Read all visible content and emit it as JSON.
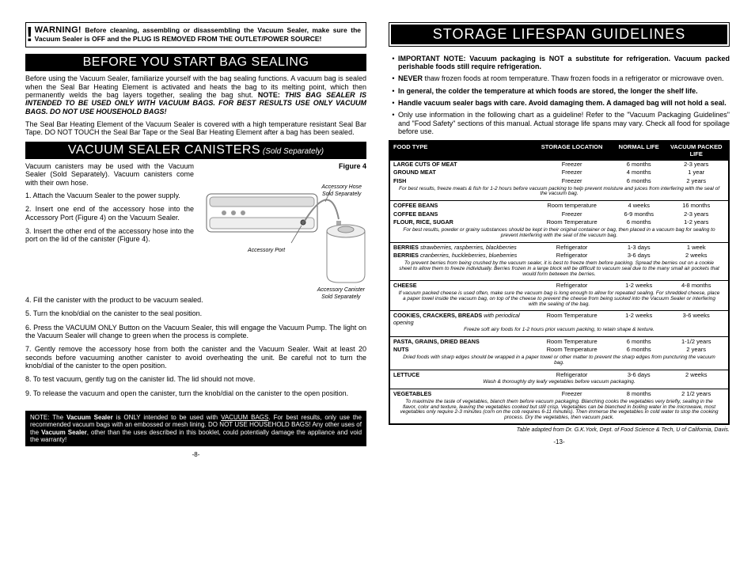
{
  "left": {
    "warning_lead": "WARNING!",
    "warning_body": " Before cleaning, assembling or disassembling the Vacuum Sealer, make sure the Vacuum Sealer is OFF and the PLUG IS REMOVED FROM THE OUTLET/POWER SOURCE!",
    "h1": "BEFORE YOU START BAG SEALING",
    "p1a": "Before using the Vacuum Sealer, familiarize yourself with the bag sealing functions. A vacuum bag is sealed when the Seal Bar Heating Element is activated and heats the bag to its melting point, which then permanently welds the bag layers together, sealing the bag shut.    ",
    "p1_note_lead": "NOTE:",
    "p1_note_body": "  THIS BAG SEALER IS INTENDED TO BE USED ONLY WITH VACUUM BAGS.  FOR BEST RESULTS USE ONLY VACUUM BAGS.  DO NOT USE HOUSEHOLD BAGS!",
    "p2": "The Seal Bar Heating Element of the Vacuum Sealer is covered with a high temperature resistant Seal Bar Tape.  DO NOT TOUCH the Seal Bar Tape or the Seal Bar Heating Element after a bag has been sealed.",
    "h2": "VACUUM SEALER CANISTERS",
    "h2_sub": " (Sold Separately)",
    "can_intro": "Vacuum canisters may be used with the Vacuum Sealer (Sold Separately).  Vacuum canisters come with their own hose.",
    "fig_label": "Figure 4",
    "fig_hose": "Accessory Hose",
    "fig_sold": "Sold Separately",
    "fig_port": "Accessory Port",
    "fig_can": "Accessory Canister",
    "steps": [
      "1.  Attach the Vacuum Sealer to the power supply.",
      "2.  Insert one end of the accessory hose into the Accessory Port (Figure 4) on the Vacuum Sealer.",
      "3.  Insert the other end of the accessory hose into the port on the lid of the canister (Figure 4).",
      "4.   Fill the canister with the product to be vacuum sealed.",
      "5.   Turn the knob/dial on the canister to the seal position.",
      "6.  Press the VACUUM ONLY Button on the Vacuum Sealer, this will engage the Vacuum Pump.  The light on the Vacuum Sealer will change to green when the process is complete.",
      "7.  Gently remove the accessory hose from both the canister and the Vacuum Sealer. Wait at least 20 seconds before vacuuming another canister to avoid overheating the unit. Be careful not to turn the knob/dial of the canister to the open position.",
      "8.   To test vacuum, gently tug on the canister lid. The lid should not move.",
      "9.  To release the vacuum and open the canister, turn the knob/dial on the canister to the open position."
    ],
    "note_box_lead": "NOTE:",
    "note_box_body1": "  The ",
    "note_box_vs": "Vacuum Sealer",
    "note_box_body2": " is ONLY intended to be used with ",
    "note_box_vb": "VACUUM BAGS",
    "note_box_body3": ".  For best results, only use the recommended vacuum bags with an embossed or mesh lining.  ",
    "note_box_dn": "DO NOT USE HOUSEHOLD BAGS!",
    "note_box_body4": "  Any other uses of the  ",
    "note_box_body5": ", other than the uses described in this booklet, could potentially damage the appliance and void the warranty!",
    "page": "-8-"
  },
  "right": {
    "h1": "STORAGE LIFESPAN GUIDELINES",
    "b1_lead": "IMPORTANT NOTE:",
    "b1": " Vacuum packaging is NOT a substitute for refrigeration. Vacuum packed perishable foods still require refrigeration.",
    "b2_lead": "NEVER",
    "b2": " thaw frozen foods at room temperature.  Thaw frozen foods in a refrigerator or microwave oven.",
    "b3": "In general, the colder the temperature at which foods are stored, the longer the shelf life.",
    "b4": "Handle vacuum sealer bags with care.  Avoid damaging them.  A damaged bag will not hold a seal.",
    "b5": "Only use information in the following chart as a guideline!  Refer to the \"Vacuum Packaging Guidelines\" and \"Food Safety\" sections of this manual.  Actual storage life spans may vary.  Check all food for spoilage before use.",
    "table": {
      "head": [
        "FOOD TYPE",
        "STORAGE LOCATION",
        "NORMAL LIFE",
        "VACUUM PACKED LIFE"
      ],
      "groups": [
        {
          "rows": [
            [
              "LARGE CUTS OF MEAT",
              "Freezer",
              "6 months",
              "2-3 years"
            ],
            [
              "GROUND MEAT",
              "Freezer",
              "4 months",
              "1 year"
            ],
            [
              "FISH",
              "Freezer",
              "6 months",
              "2 years"
            ]
          ],
          "tip": "For best results, freeze meats & fish for 1-2 hours before vacuum packing to help prevent moisture and juices from interfering with the seal of the vacuum bag."
        },
        {
          "rows": [
            [
              "COFFEE BEANS",
              "Room temperature",
              "4 weeks",
              "16 months"
            ],
            [
              "COFFEE BEANS",
              "Freezer",
              "6-9 months",
              "2-3 years"
            ],
            [
              "FLOUR, RICE, SUGAR",
              "Room Temperature",
              "6 months",
              "1-2 years"
            ]
          ],
          "tip": "For best results, powder or grainy substances should be kept in their original container or bag, then placed in a vacuum bag for sealing to prevent interfering with the seal of the vacuum bag."
        },
        {
          "rows": [
            [
              "BERRIES strawberries, raspberries, blackberries",
              "Refrigerator",
              "1-3 days",
              "1 week"
            ],
            [
              "BERRIES cranberries, huckleberries, blueberries",
              "Refrigerator",
              "3-6 days",
              "2 weeks"
            ]
          ],
          "tip": "To prevent berries from being crushed by the vacuum sealer, it is best to freeze them before packing.  Spread the berries out on a cookie sheet to allow them to freeze individually.  Berries frozen in a large block will be difficult to vacuum seal due to the many small air pockets that would form between the berries."
        },
        {
          "rows": [
            [
              "CHEESE",
              "Refrigerator",
              "1-2 weeks",
              "4-8 months"
            ]
          ],
          "tip": "If vacuum packed cheese is used often, make sure the vacuum bag is long enough to allow for repeated sealing.  For shredded cheese, place a paper towel inside the vacuum bag, on top of the cheese to prevent the cheese from being sucked into the Vacuum Sealer or interfering with the sealing of the bag."
        },
        {
          "rows": [
            [
              "COOKIES, CRACKERS, BREADS with periodical opening",
              "Room Temperature",
              "1-2 weeks",
              "3-6 weeks"
            ]
          ],
          "tip": "Freeze soft airy foods for 1-2 hours prior vacuum packing, to retain shape & texture."
        },
        {
          "rows": [
            [
              "PASTA, GRAINS, DRIED BEANS",
              "Room Temperature",
              "6 months",
              "1-1/2 years"
            ],
            [
              "NUTS",
              "Room Temperature",
              "6 months",
              "2 years"
            ]
          ],
          "tip": "Dried foods with sharp edges should be wrapped in a paper towel or other matter to prevent the sharp edges from puncturing the vacuum bag."
        },
        {
          "rows": [
            [
              "LETTUCE",
              "Refrigerator",
              "3-6 days",
              "2 weeks"
            ]
          ],
          "tip": "Wash & thoroughly dry leafy vegetables before vacuum packaging."
        },
        {
          "rows": [
            [
              "VEGETABLES",
              "Freezer",
              "8 months",
              "2 1/2 years"
            ]
          ],
          "tip": "To maximize the taste of vegetables, blanch them before vacuum packaging.  Blanching cooks the vegetables very briefly, sealing in the flavor, color and texture, leaving the vegetables cooked but still crisp. Vegetables can be blanched in boiling water in the microwave, most vegetables only require 2-3 minutes (corn on the cob requires 6-11 minutes). Then immerse the vegetables in cold water to stop the cooking process.  Dry the vegetables, then vacuum pack."
        }
      ],
      "credit": "Table adapted from Dr. G.K.York, Dept. of Food Science & Tech, U of California, Davis."
    },
    "page": "-13-"
  }
}
